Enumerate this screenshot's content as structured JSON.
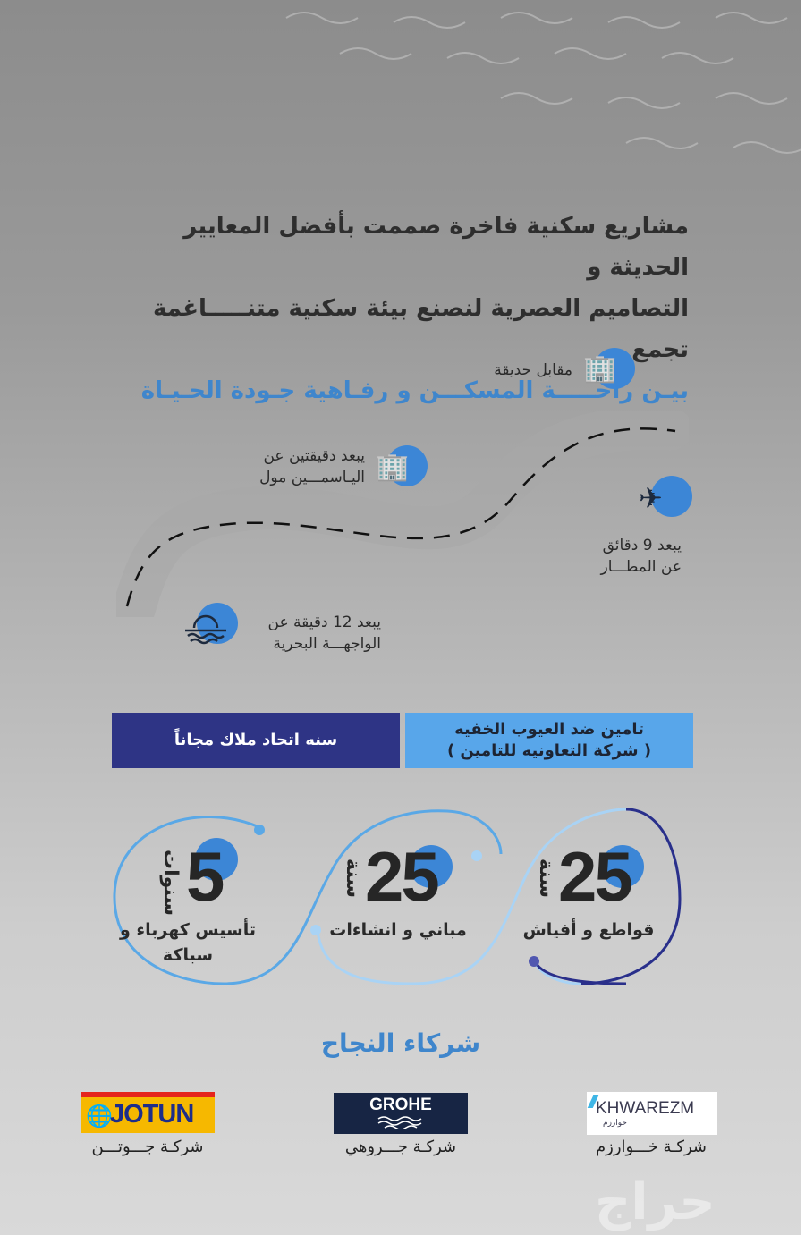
{
  "headline": {
    "line1": "مشاريع  سكنية فاخرة صممت بأفضل المعايير الحديثة و",
    "line2": "التصاميم العصرية لنصنع بيئة سكنية متنـــــاغمة تجمع",
    "line3": "بيـن راحـــــة المسكـــن و رفـاهية جـودة الحـيـاة"
  },
  "locations": [
    {
      "icon": "building-icon",
      "lines": [
        "مقابل حديقة"
      ]
    },
    {
      "icon": "building-icon",
      "lines": [
        "يبعد دقيقتين عن",
        "اليـاسمـــين مول"
      ]
    },
    {
      "icon": "airplane-icon",
      "lines": [
        "يبعد 9 دقائق",
        "عن المطـــار"
      ]
    },
    {
      "icon": "sunset-sea-icon",
      "lines": [
        "يبعد 12 دقيقة عن",
        "الواجهـــة البحرية"
      ]
    }
  ],
  "boxes": {
    "insurance": {
      "line1": "تامين ضد العيوب الخفيه",
      "line2": "( شركة التعاونيه للتامين )",
      "color": "#58a6ea"
    },
    "union": {
      "label": "سنه اتحاد ملاك مجاناً",
      "color": "#2e3485"
    }
  },
  "warranties": [
    {
      "number": "25",
      "unit": "سنة",
      "label": "قواطع و أفياش",
      "ring_color": "#2a2f8a"
    },
    {
      "number": "25",
      "unit": "سنة",
      "label": "مباني و انشاءات",
      "ring_color": "#a9d3f5"
    },
    {
      "number": "5",
      "unit": "سنوات",
      "label": "تأسيس كهرباء و سباكة",
      "ring_color": "#5aa8e6"
    }
  ],
  "partners": {
    "title": "شركاء النجاح",
    "items": [
      {
        "logo": "KHWAREZM",
        "logo_ar": "خوارزم",
        "name": "شركـة خـــوارزم"
      },
      {
        "logo": "GROHE",
        "name": "شركـة جـــروهي"
      },
      {
        "logo": "JOTUN",
        "name": "شركـة جـــوتـــن"
      }
    ]
  },
  "watermark": "حراج"
}
